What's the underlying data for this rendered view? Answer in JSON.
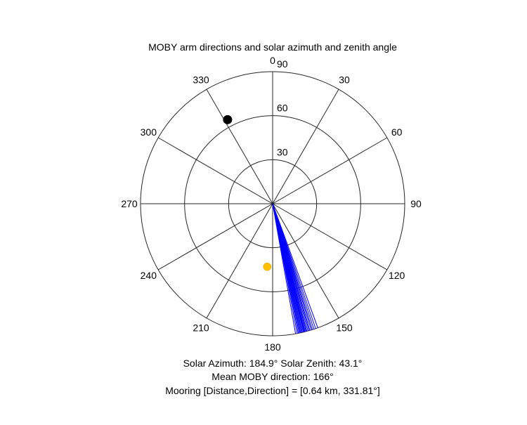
{
  "chart_data": {
    "type": "polar",
    "title": "MOBY arm directions and solar azimuth and zenith angle",
    "angle_ticks": [
      "0",
      "30",
      "60",
      "90",
      "120",
      "150",
      "180",
      "210",
      "240",
      "270",
      "300",
      "330"
    ],
    "radial_ticks": [
      "30",
      "60",
      "90"
    ],
    "radial_range": [
      0,
      90
    ],
    "angle_direction": "clockwise",
    "angle_zero": "top",
    "grid": true,
    "moby_arms": {
      "color": "#0000ff",
      "radius": 90,
      "directions": [
        160.0,
        161.0,
        161.8,
        162.5,
        163.0,
        163.6,
        164.0,
        164.5,
        165.0,
        165.3,
        165.7,
        166.0,
        166.3,
        166.6,
        167.0,
        167.3,
        167.7,
        168.0,
        168.4,
        168.8,
        169.3,
        170.0
      ]
    },
    "sun": {
      "color": "#ffc000",
      "azimuth": 184.9,
      "zenith": 43.1
    },
    "mooring": {
      "color": "#000000",
      "direction": 331.81,
      "radius": 65
    },
    "captions": [
      "Solar Azimuth: 184.9°    Solar Zenith: 43.1°",
      "Mean MOBY direction: 166°",
      "Mooring [Distance,Direction] = [0.64 km, 331.81°]"
    ]
  }
}
